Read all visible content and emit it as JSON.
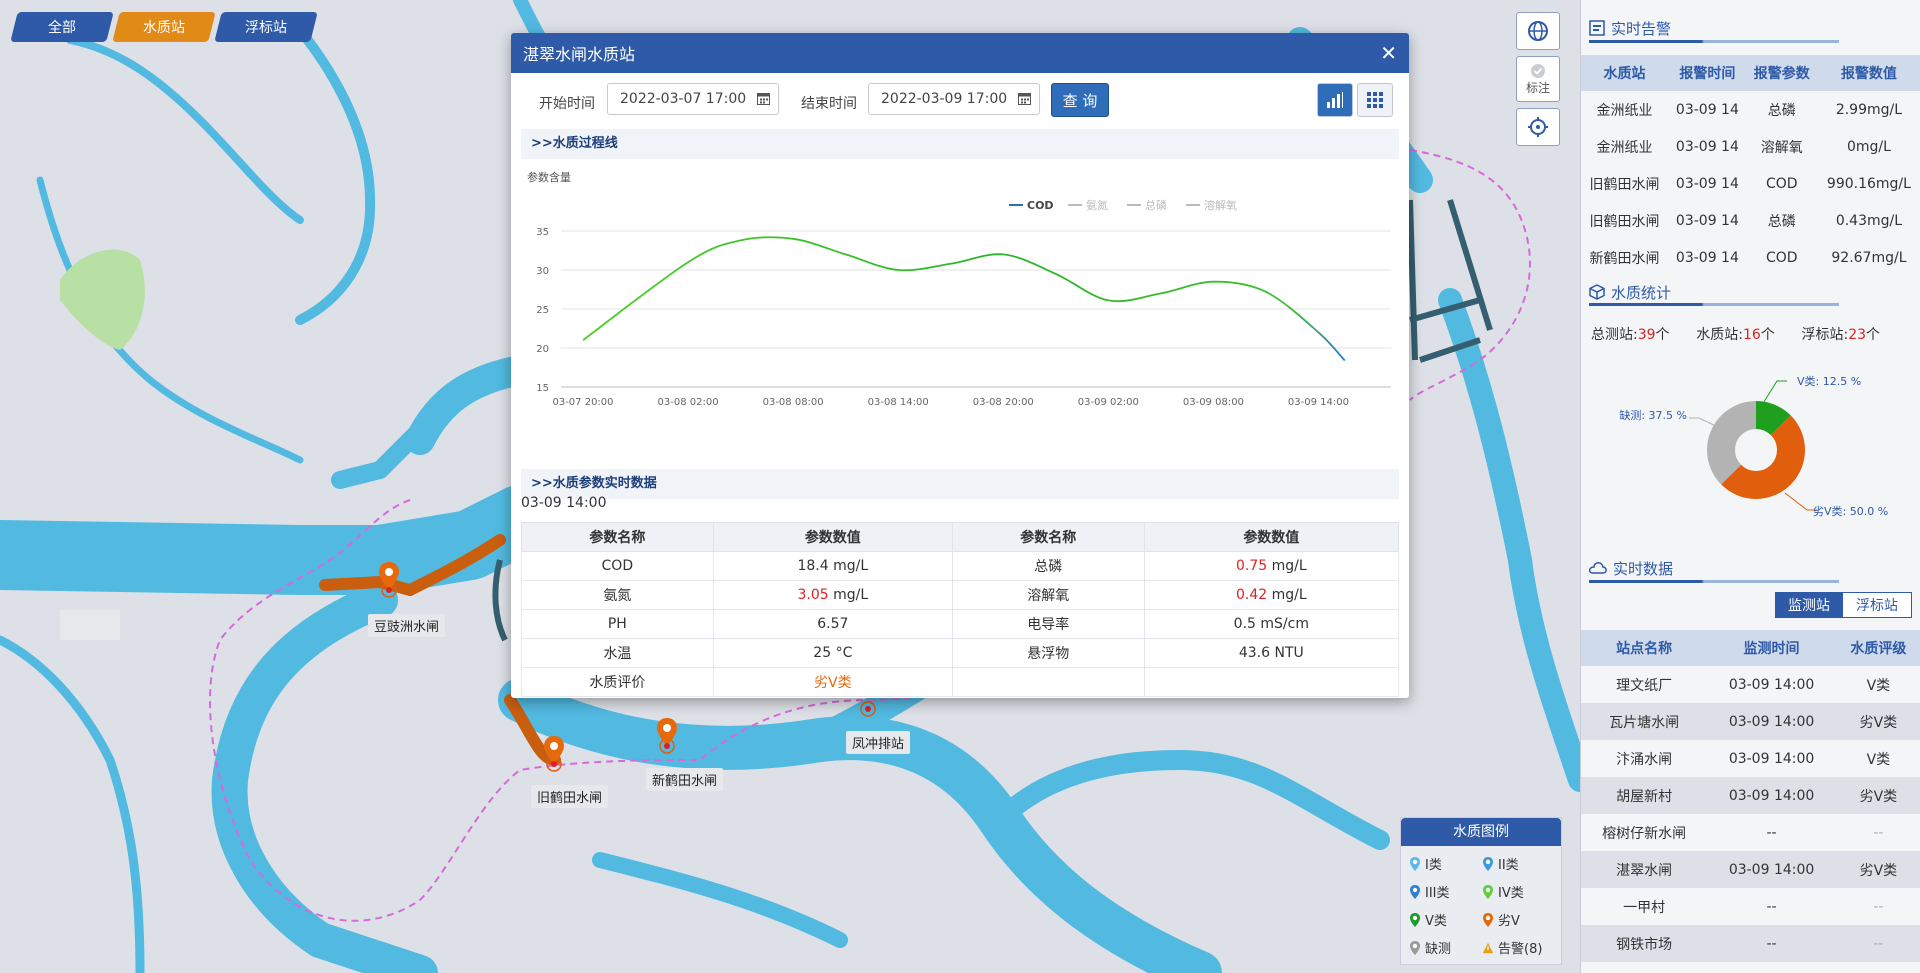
{
  "filters": [
    {
      "label": "全部",
      "style": "blue"
    },
    {
      "label": "水质站",
      "style": "orange"
    },
    {
      "label": "浮标站",
      "style": "blue"
    }
  ],
  "map_tools": {
    "mark_label": "标注"
  },
  "map_labels": {
    "douchizhou": "豆豉洲水闸",
    "jiuhetian": "旧鹤田水闸",
    "xinhetian": "新鹤田水闸",
    "fengchong": "凤冲排站"
  },
  "legend": {
    "title": "水质图例",
    "items": [
      {
        "label": "I类",
        "color": "#5cb8e8"
      },
      {
        "label": "II类",
        "color": "#3b9ad9"
      },
      {
        "label": "III类",
        "color": "#2f7fd0"
      },
      {
        "label": "IV类",
        "color": "#5fcf3a"
      },
      {
        "label": "V类",
        "color": "#1e9a2a"
      },
      {
        "label": "劣V",
        "color": "#e66a0b"
      },
      {
        "label": "缺测",
        "color": "#9a9a9a"
      },
      {
        "label": "告警(8)",
        "color": "#e8a010"
      }
    ]
  },
  "modal": {
    "title": "湛翠水闸水质站",
    "start_label": "开始时间",
    "start_value": "2022-03-07 17:00",
    "end_label": "结束时间",
    "end_value": "2022-03-09 17:00",
    "query_label": "查 询",
    "section1": ">>水质过程线",
    "section2": ">>水质参数实时数据",
    "timestamp": "03-09 14:00",
    "table_headers": [
      "参数名称",
      "参数数值",
      "参数名称",
      "参数数值"
    ],
    "rows": [
      {
        "n1": "COD",
        "v1": "18.4",
        "u1": "mg/L",
        "c1": "",
        "n2": "总磷",
        "v2": "0.75",
        "u2": "mg/L",
        "c2": "red"
      },
      {
        "n1": "氨氮",
        "v1": "3.05",
        "u1": "mg/L",
        "c1": "red",
        "n2": "溶解氧",
        "v2": "0.42",
        "u2": "mg/L",
        "c2": "red"
      },
      {
        "n1": "PH",
        "v1": "6.57",
        "u1": "",
        "c1": "",
        "n2": "电导率",
        "v2": "0.5",
        "u2": "mS/cm",
        "c2": ""
      },
      {
        "n1": "水温",
        "v1": "25",
        "u1": "°C",
        "c1": "",
        "n2": "悬浮物",
        "v2": "43.6",
        "u2": "NTU",
        "c2": ""
      }
    ],
    "evaluation_label": "水质评价",
    "evaluation_value": "劣V类"
  },
  "chart_data": {
    "type": "line",
    "ylabel": "参数含量",
    "ylim": [
      15,
      35
    ],
    "yticks": [
      "15",
      "20",
      "25",
      "30",
      "35"
    ],
    "xticks": [
      "03-07 20:00",
      "03-08 02:00",
      "03-08 08:00",
      "03-08 14:00",
      "03-08 20:00",
      "03-09 02:00",
      "03-09 08:00",
      "03-09 14:00"
    ],
    "legend": [
      "COD",
      "氨氮",
      "总磷",
      "溶解氧"
    ],
    "legend_position": "top-right",
    "series": [
      {
        "name": "COD",
        "points": [
          [
            0,
            21.0
          ],
          [
            6,
            31.0
          ],
          [
            9,
            33.8
          ],
          [
            12,
            34.0
          ],
          [
            15,
            32.0
          ],
          [
            18,
            30.0
          ],
          [
            21,
            30.8
          ],
          [
            24,
            32.0
          ],
          [
            27,
            29.5
          ],
          [
            30,
            26.1
          ],
          [
            33,
            27.0
          ],
          [
            36,
            28.5
          ],
          [
            39,
            27.2
          ],
          [
            42,
            22.0
          ],
          [
            43.5,
            18.4
          ]
        ]
      }
    ],
    "grid": true
  },
  "alerts": {
    "title": "实时告警",
    "headers": [
      "水质站",
      "报警时间",
      "报警参数",
      "报警数值"
    ],
    "rows": [
      [
        "金洲纸业",
        "03-09 14",
        "总磷",
        "2.99mg/L"
      ],
      [
        "金洲纸业",
        "03-09 14",
        "溶解氧",
        "0mg/L"
      ],
      [
        "旧鹤田水闸",
        "03-09 14",
        "COD",
        "990.16mg/L"
      ],
      [
        "旧鹤田水闸",
        "03-09 14",
        "总磷",
        "0.43mg/L"
      ],
      [
        "新鹤田水闸",
        "03-09 14",
        "COD",
        "92.67mg/L"
      ]
    ]
  },
  "stats": {
    "title": "水质统计",
    "total_label": "总测站:",
    "total_value": "39",
    "water_label": "水质站:",
    "water_value": "16",
    "buoy_label": "浮标站:",
    "buoy_value": "23",
    "unit": "个",
    "donut": [
      {
        "label": "V类: 12.5 %",
        "percent": 12.5,
        "color": "#1ea01e"
      },
      {
        "label": "劣V类: 50.0 %",
        "percent": 50.0,
        "color": "#e05e0c"
      },
      {
        "label": "缺测: 37.5 %",
        "percent": 37.5,
        "color": "#b3b3b3"
      }
    ]
  },
  "realtime": {
    "title": "实时数据",
    "toggle_on": "监测站",
    "toggle_off": "浮标站",
    "headers": [
      "站点名称",
      "监测时间",
      "水质评级"
    ],
    "rows": [
      {
        "name": "理文纸厂",
        "time": "03-09 14:00",
        "grade": "V类",
        "cls": "green-t"
      },
      {
        "name": "瓦片塘水闸",
        "time": "03-09 14:00",
        "grade": "劣V类",
        "cls": "orange-t"
      },
      {
        "name": "汴涌水闸",
        "time": "03-09 14:00",
        "grade": "V类",
        "cls": "green-t"
      },
      {
        "name": "胡屋新村",
        "time": "03-09 14:00",
        "grade": "劣V类",
        "cls": "orange-t"
      },
      {
        "name": "榕树仔新水闸",
        "time": "--",
        "grade": "--",
        "cls": "gray"
      },
      {
        "name": "湛翠水闸",
        "time": "03-09 14:00",
        "grade": "劣V类",
        "cls": "orange-t"
      },
      {
        "name": "一甲村",
        "time": "--",
        "grade": "--",
        "cls": "gray"
      },
      {
        "name": "钢铁市场",
        "time": "--",
        "grade": "--",
        "cls": "gray"
      }
    ]
  }
}
